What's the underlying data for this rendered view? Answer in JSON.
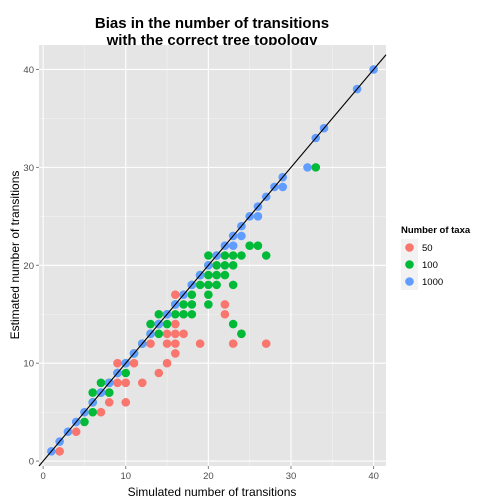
{
  "chart_data": {
    "type": "scatter",
    "title": [
      "Bias in the number of transitions",
      "with the correct tree topology"
    ],
    "xlabel": "Simulated number of transitions",
    "ylabel": "Estimated number of transitions",
    "xlim": [
      -0.5,
      41.5
    ],
    "ylim": [
      -0.5,
      42.5
    ],
    "x_ticks": [
      0,
      10,
      20,
      30,
      40
    ],
    "y_ticks": [
      0,
      10,
      20,
      30,
      40
    ],
    "grid": true,
    "reference_line": {
      "slope": 1,
      "intercept": 0
    },
    "legend": {
      "title": "Number of taxa",
      "position": "right"
    },
    "colors": {
      "panel": "#e5e5e5",
      "grid_major": "#ffffff",
      "grid_minor": "#f2f2f2"
    },
    "series": [
      {
        "name": "50",
        "color": "#f8766d",
        "points": [
          [
            2,
            1
          ],
          [
            4,
            3
          ],
          [
            7,
            5
          ],
          [
            8,
            6
          ],
          [
            8,
            7
          ],
          [
            8,
            8
          ],
          [
            9,
            8
          ],
          [
            9,
            9
          ],
          [
            9,
            10
          ],
          [
            10,
            6
          ],
          [
            10,
            8
          ],
          [
            11,
            10
          ],
          [
            12,
            8
          ],
          [
            13,
            12
          ],
          [
            14,
            9
          ],
          [
            15,
            10
          ],
          [
            15,
            12
          ],
          [
            15,
            13
          ],
          [
            16,
            11
          ],
          [
            16,
            12
          ],
          [
            16,
            13
          ],
          [
            16,
            14
          ],
          [
            16,
            17
          ],
          [
            17,
            13
          ],
          [
            17,
            15
          ],
          [
            19,
            12
          ],
          [
            22,
            15
          ],
          [
            22,
            16
          ],
          [
            23,
            12
          ],
          [
            24,
            13
          ],
          [
            27,
            12
          ]
        ]
      },
      {
        "name": "100",
        "color": "#00ba38",
        "points": [
          [
            5,
            4
          ],
          [
            6,
            5
          ],
          [
            6,
            6
          ],
          [
            6,
            7
          ],
          [
            7,
            7
          ],
          [
            7,
            8
          ],
          [
            8,
            7
          ],
          [
            8,
            8
          ],
          [
            9,
            9
          ],
          [
            10,
            9
          ],
          [
            10,
            10
          ],
          [
            11,
            11
          ],
          [
            12,
            12
          ],
          [
            13,
            13
          ],
          [
            13,
            14
          ],
          [
            14,
            13
          ],
          [
            14,
            14
          ],
          [
            14,
            15
          ],
          [
            15,
            14
          ],
          [
            15,
            15
          ],
          [
            16,
            15
          ],
          [
            16,
            16
          ],
          [
            17,
            15
          ],
          [
            17,
            16
          ],
          [
            18,
            15
          ],
          [
            18,
            16
          ],
          [
            18,
            17
          ],
          [
            18,
            18
          ],
          [
            19,
            18
          ],
          [
            19,
            19
          ],
          [
            20,
            16
          ],
          [
            20,
            17
          ],
          [
            20,
            18
          ],
          [
            20,
            19
          ],
          [
            20,
            20
          ],
          [
            20,
            21
          ],
          [
            21,
            18
          ],
          [
            21,
            19
          ],
          [
            21,
            20
          ],
          [
            21,
            21
          ],
          [
            22,
            19
          ],
          [
            22,
            20
          ],
          [
            22,
            21
          ],
          [
            23,
            14
          ],
          [
            23,
            18
          ],
          [
            23,
            20
          ],
          [
            23,
            21
          ],
          [
            24,
            13
          ],
          [
            24,
            21
          ],
          [
            25,
            22
          ],
          [
            26,
            22
          ],
          [
            27,
            21
          ],
          [
            33,
            30
          ]
        ]
      },
      {
        "name": "1000",
        "color": "#619cff",
        "points": [
          [
            1,
            1
          ],
          [
            2,
            2
          ],
          [
            3,
            3
          ],
          [
            4,
            4
          ],
          [
            5,
            5
          ],
          [
            6,
            6
          ],
          [
            7,
            7
          ],
          [
            8,
            8
          ],
          [
            9,
            9
          ],
          [
            10,
            10
          ],
          [
            11,
            11
          ],
          [
            12,
            12
          ],
          [
            13,
            13
          ],
          [
            14,
            14
          ],
          [
            15,
            15
          ],
          [
            16,
            16
          ],
          [
            17,
            17
          ],
          [
            18,
            18
          ],
          [
            19,
            19
          ],
          [
            20,
            20
          ],
          [
            21,
            21
          ],
          [
            22,
            22
          ],
          [
            23,
            22
          ],
          [
            23,
            23
          ],
          [
            24,
            23
          ],
          [
            24,
            24
          ],
          [
            25,
            25
          ],
          [
            26,
            25
          ],
          [
            26,
            26
          ],
          [
            27,
            27
          ],
          [
            28,
            28
          ],
          [
            29,
            28
          ],
          [
            29,
            29
          ],
          [
            32,
            30
          ],
          [
            33,
            33
          ],
          [
            34,
            34
          ],
          [
            38,
            38
          ],
          [
            40,
            40
          ]
        ]
      }
    ]
  }
}
